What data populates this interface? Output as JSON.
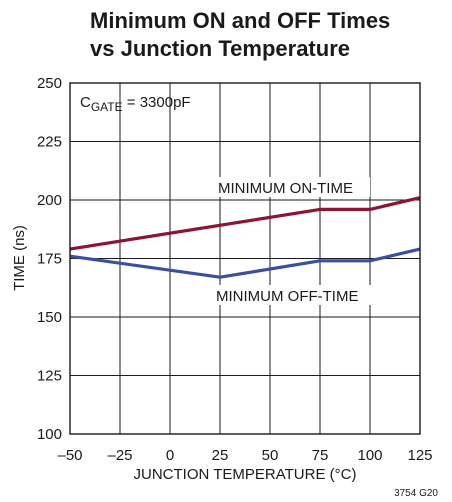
{
  "chart_data": {
    "type": "line",
    "title_lines": [
      "Minimum ON and OFF Times",
      "vs Junction Temperature"
    ],
    "xlabel": "JUNCTION TEMPERATURE (°C)",
    "ylabel": "TIME (ns)",
    "xlim": [
      -50,
      125
    ],
    "ylim": [
      100,
      250
    ],
    "x_ticks": [
      -50,
      -25,
      0,
      25,
      50,
      75,
      100,
      125
    ],
    "x_tick_labels": [
      "–50",
      "–25",
      "0",
      "25",
      "50",
      "75",
      "100",
      "125"
    ],
    "y_ticks": [
      100,
      125,
      150,
      175,
      200,
      225,
      250
    ],
    "y_tick_labels": [
      "100",
      "125",
      "150",
      "175",
      "200",
      "225",
      "250"
    ],
    "grid": true,
    "condition": {
      "main": "C",
      "sub": "GATE",
      "rest": " = 3300pF"
    },
    "figure_id": "3754 G20",
    "series": [
      {
        "name": "MINIMUM ON-TIME",
        "color": "#8c1535",
        "x": [
          -50,
          75,
          100,
          125
        ],
        "y": [
          179,
          196,
          196,
          201
        ]
      },
      {
        "name": "MINIMUM OFF-TIME",
        "color": "#3a4fa0",
        "x": [
          -50,
          25,
          75,
          100,
          125
        ],
        "y": [
          176,
          167,
          174,
          174,
          179
        ]
      }
    ]
  }
}
